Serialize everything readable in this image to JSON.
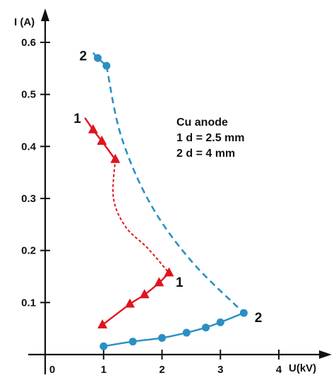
{
  "chart_data": {
    "type": "line",
    "title": "",
    "xlabel": "U(kV)",
    "ylabel": "I (A)",
    "xlim": [
      0,
      4.6
    ],
    "ylim": [
      0,
      0.655
    ],
    "x_ticks": [
      {
        "value": 0,
        "label": "0"
      },
      {
        "value": 1,
        "label": "1"
      },
      {
        "value": 2,
        "label": "2"
      },
      {
        "value": 3,
        "label": "3"
      },
      {
        "value": 4,
        "label": "4"
      }
    ],
    "y_ticks": [
      {
        "value": 0.1,
        "label": "0.1"
      },
      {
        "value": 0.2,
        "label": "0.2"
      },
      {
        "value": 0.3,
        "label": "0.3"
      },
      {
        "value": 0.4,
        "label": "0.4"
      },
      {
        "value": 0.5,
        "label": "0.5"
      },
      {
        "value": 0.6,
        "label": "0.6"
      }
    ],
    "annotation_lines": [
      "Cu anode",
      "1 d = 2.5 mm",
      "2 d = 4 mm"
    ],
    "series": [
      {
        "name": "1",
        "color": "#e0141e",
        "marker": "triangle",
        "upper_branch": [
          [
            0.68,
            0.455
          ],
          [
            0.82,
            0.432
          ],
          [
            0.97,
            0.41
          ],
          [
            1.2,
            0.375
          ]
        ],
        "upper_points": [
          [
            0.82,
            0.432
          ],
          [
            0.97,
            0.41
          ],
          [
            1.2,
            0.375
          ]
        ],
        "connector": [
          [
            1.2,
            0.375
          ],
          [
            1.17,
            0.3
          ],
          [
            1.38,
            0.245
          ],
          [
            1.75,
            0.205
          ],
          [
            2.12,
            0.157
          ]
        ],
        "lower_branch": [
          [
            2.12,
            0.157
          ],
          [
            1.95,
            0.138
          ],
          [
            1.7,
            0.115
          ],
          [
            1.45,
            0.097
          ],
          [
            0.98,
            0.057
          ]
        ],
        "lower_points": [
          [
            2.12,
            0.157
          ],
          [
            1.95,
            0.138
          ],
          [
            1.7,
            0.115
          ],
          [
            1.45,
            0.097
          ],
          [
            0.98,
            0.057
          ]
        ],
        "label_positions": [
          [
            0.55,
            0.455
          ],
          [
            2.3,
            0.14
          ]
        ]
      },
      {
        "name": "2",
        "color": "#2b8fc4",
        "marker": "circle",
        "upper_branch": [
          [
            0.82,
            0.58
          ],
          [
            0.9,
            0.57
          ],
          [
            1.05,
            0.555
          ]
        ],
        "upper_points": [
          [
            0.9,
            0.57
          ],
          [
            1.05,
            0.555
          ]
        ],
        "connector": [
          [
            1.05,
            0.555
          ],
          [
            1.3,
            0.42
          ],
          [
            1.8,
            0.29
          ],
          [
            2.5,
            0.18
          ],
          [
            3.4,
            0.08
          ]
        ],
        "lower_branch": [
          [
            3.4,
            0.08
          ],
          [
            3.0,
            0.062
          ],
          [
            2.75,
            0.052
          ],
          [
            2.42,
            0.042
          ],
          [
            2.0,
            0.032
          ],
          [
            1.5,
            0.025
          ],
          [
            1.0,
            0.016
          ]
        ],
        "lower_points": [
          [
            3.4,
            0.08
          ],
          [
            3.0,
            0.062
          ],
          [
            2.75,
            0.052
          ],
          [
            2.42,
            0.042
          ],
          [
            2.0,
            0.032
          ],
          [
            1.5,
            0.025
          ],
          [
            1.0,
            0.016
          ]
        ],
        "label_positions": [
          [
            0.65,
            0.575
          ],
          [
            3.65,
            0.072
          ]
        ]
      }
    ]
  }
}
